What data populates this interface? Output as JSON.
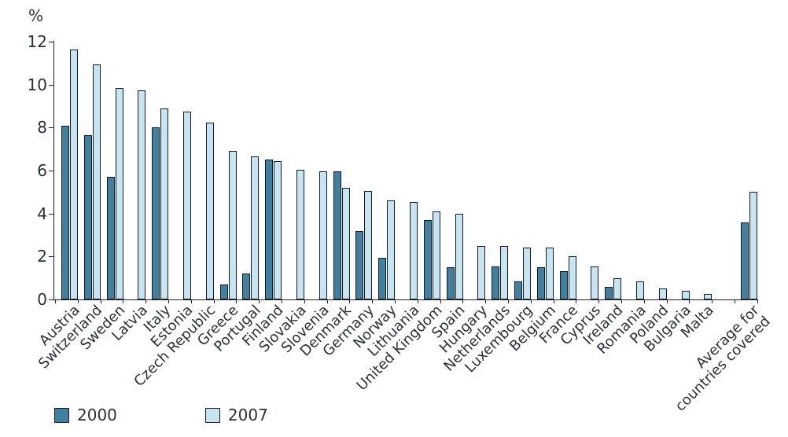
{
  "chart_data": {
    "type": "bar",
    "title": "",
    "ylabel": "%",
    "xlabel": "",
    "ylim": [
      0,
      12
    ],
    "yticks": [
      0,
      2,
      4,
      6,
      8,
      10,
      12
    ],
    "grid": false,
    "legend_position": "bottom-left",
    "gap_before_last_category": true,
    "categories": [
      "Austria",
      "Switzerland",
      "Sweden",
      "Latvia",
      "Italy",
      "Estonia",
      "Czech Republic",
      "Greece",
      "Portugal",
      "Finland",
      "Slovakia",
      "Slovenia",
      "Denmark",
      "Germany",
      "Norway",
      "Lithuania",
      "United Kingdom",
      "Spain",
      "Hungary",
      "Netherlands",
      "Luxembourg",
      "Belgium",
      "France",
      "Cyprus",
      "Ireland",
      "Romania",
      "Poland",
      "Bulgaria",
      "Malta",
      "Average for\ncountries covered"
    ],
    "series": [
      {
        "name": "2000",
        "color": "#43809f",
        "values": [
          8.1,
          7.65,
          5.7,
          null,
          8.0,
          null,
          null,
          0.7,
          1.2,
          6.5,
          null,
          null,
          5.95,
          3.2,
          1.95,
          null,
          3.7,
          1.5,
          null,
          1.55,
          0.85,
          1.5,
          1.3,
          null,
          0.6,
          null,
          null,
          null,
          null,
          3.6
        ]
      },
      {
        "name": "2007",
        "color": "#c7e4f0",
        "values": [
          11.65,
          10.95,
          9.85,
          9.75,
          8.9,
          8.75,
          8.25,
          6.9,
          6.65,
          6.45,
          6.05,
          5.95,
          5.2,
          5.05,
          4.6,
          4.55,
          4.1,
          4.0,
          2.5,
          2.5,
          2.4,
          2.4,
          2.0,
          1.55,
          1.0,
          0.85,
          0.5,
          0.4,
          0.25,
          5.0
        ]
      }
    ],
    "bar_border_color": "#161a24",
    "axis_color": "#1d212b",
    "text_color": "#2b2f3a"
  }
}
